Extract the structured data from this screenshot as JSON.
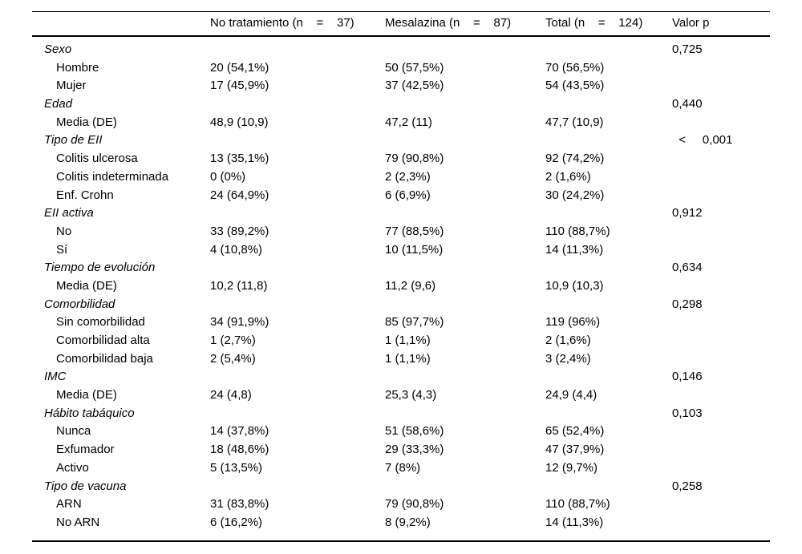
{
  "page": {
    "background": "#ffffff",
    "text_color": "#000000",
    "rule_color": "#000000"
  },
  "table": {
    "columns": [
      {
        "key": "label",
        "label": ""
      },
      {
        "key": "no_treatment",
        "label": "No tratamiento (n    =    37)"
      },
      {
        "key": "mesalazina",
        "label": "Mesalazina (n    =    87)"
      },
      {
        "key": "total",
        "label": "Total (n    =    124)"
      },
      {
        "key": "p",
        "label": "Valor p"
      }
    ],
    "sections": [
      {
        "label": "Sexo",
        "p_value": "0,725",
        "rows": [
          {
            "label": "Hombre",
            "no_treatment": "20 (54,1%)",
            "mesalazina": "50 (57,5%)",
            "total": "70 (56,5%)"
          },
          {
            "label": "Mujer",
            "no_treatment": "17 (45,9%)",
            "mesalazina": "37 (42,5%)",
            "total": "54 (43,5%)"
          }
        ]
      },
      {
        "label": "Edad",
        "p_value": "0,440",
        "rows": [
          {
            "label": "Media (DE)",
            "no_treatment": "48,9 (10,9)",
            "mesalazina": "47,2 (11)",
            "total": "47,7 (10,9)"
          }
        ]
      },
      {
        "label": "Tipo de EII",
        "p_value": "  <     0,001",
        "rows": [
          {
            "label": "Colitis ulcerosa",
            "no_treatment": "13 (35,1%)",
            "mesalazina": "79 (90,8%)",
            "total": "92 (74,2%)"
          },
          {
            "label": "Colitis indeterminada",
            "no_treatment": "0 (0%)",
            "mesalazina": "2 (2,3%)",
            "total": "2 (1,6%)"
          },
          {
            "label": "Enf. Crohn",
            "no_treatment": "24 (64,9%)",
            "mesalazina": "6 (6,9%)",
            "total": "30 (24,2%)"
          }
        ]
      },
      {
        "label": "EII activa",
        "p_value": "0,912",
        "rows": [
          {
            "label": "No",
            "no_treatment": "33 (89,2%)",
            "mesalazina": "77 (88,5%)",
            "total": "110 (88,7%)"
          },
          {
            "label": "Sí",
            "no_treatment": "4 (10,8%)",
            "mesalazina": "10 (11,5%)",
            "total": "14 (11,3%)"
          }
        ]
      },
      {
        "label": "Tiempo de evolución",
        "p_value": "0,634",
        "rows": [
          {
            "label": "Media (DE)",
            "no_treatment": "10,2 (11,8)",
            "mesalazina": "11,2 (9,6)",
            "total": "10,9 (10,3)"
          }
        ]
      },
      {
        "label": "Comorbilidad",
        "p_value": "0,298",
        "rows": [
          {
            "label": "Sin comorbilidad",
            "no_treatment": "34 (91,9%)",
            "mesalazina": "85 (97,7%)",
            "total": "119 (96%)"
          },
          {
            "label": "Comorbilidad alta",
            "no_treatment": "1 (2,7%)",
            "mesalazina": "1 (1,1%)",
            "total": "2 (1,6%)"
          },
          {
            "label": "Comorbilidad baja",
            "no_treatment": "2 (5,4%)",
            "mesalazina": "1 (1,1%)",
            "total": "3 (2,4%)"
          }
        ]
      },
      {
        "label": "IMC",
        "p_value": "0,146",
        "rows": [
          {
            "label": "Media (DE)",
            "no_treatment": "24 (4,8)",
            "mesalazina": "25,3 (4,3)",
            "total": "24,9 (4,4)"
          }
        ]
      },
      {
        "label": "Hábito tabáquico",
        "p_value": "0,103",
        "rows": [
          {
            "label": "Nunca",
            "no_treatment": "14 (37,8%)",
            "mesalazina": "51 (58,6%)",
            "total": "65 (52,4%)"
          },
          {
            "label": "Exfumador",
            "no_treatment": "18 (48,6%)",
            "mesalazina": "29 (33,3%)",
            "total": "47 (37,9%)"
          },
          {
            "label": "Activo",
            "no_treatment": "5 (13,5%)",
            "mesalazina": "7 (8%)",
            "total": "12 (9,7%)"
          }
        ]
      },
      {
        "label": "Tipo de vacuna",
        "p_value": "0,258",
        "rows": [
          {
            "label": "ARN",
            "no_treatment": "31 (83,8%)",
            "mesalazina": "79 (90,8%)",
            "total": "110 (88,7%)"
          },
          {
            "label": "No ARN",
            "no_treatment": "6 (16,2%)",
            "mesalazina": "8 (9,2%)",
            "total": "14 (11,3%)"
          }
        ]
      }
    ]
  }
}
